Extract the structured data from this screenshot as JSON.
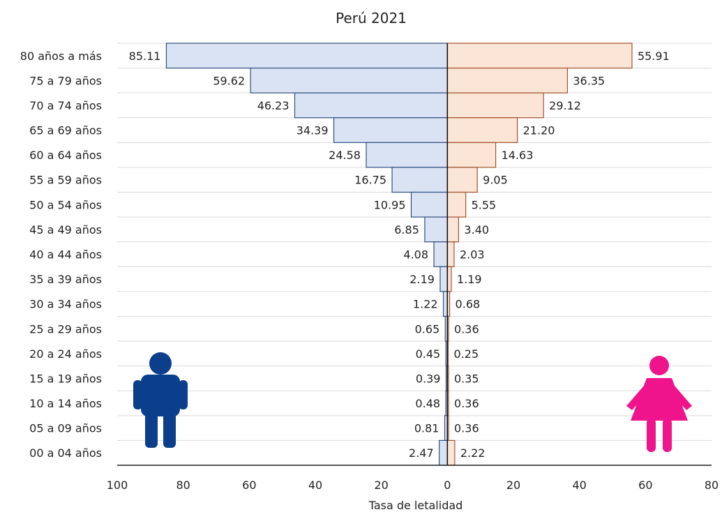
{
  "chart_data": {
    "type": "bar",
    "orientation": "horizontal",
    "layout": "population-pyramid",
    "title": "Perú 2021",
    "xlabel": "Tasa de letalidad",
    "ylabel": "",
    "categories": [
      "80 años a más",
      "75 a 79 años",
      "70 a 74 años",
      "65 a 69 años",
      "60 a 64 años",
      "55 a 59 años",
      "50 a 54 años",
      "45 a 49 años",
      "40 a 44 años",
      "35 a 39 años",
      "30 a 34 años",
      "25 a 29 años",
      "20 a 24 años",
      "15 a 19 años",
      "10 a 14 años",
      "05 a 09 años",
      "00 a 04 años"
    ],
    "series": [
      {
        "side": "left",
        "color": "#dae3f3",
        "edge": "#2f4f82",
        "values": [
          85.11,
          59.62,
          46.23,
          34.39,
          24.58,
          16.75,
          10.95,
          6.85,
          4.08,
          2.19,
          1.22,
          0.65,
          0.45,
          0.39,
          0.48,
          0.81,
          2.47
        ],
        "labels": [
          "85.11",
          "59.62",
          "46.23",
          "34.39",
          "24.58",
          "16.75",
          "10.95",
          "6.85",
          "4.08",
          "2.19",
          "1.22",
          "0.65",
          "0.45",
          "0.39",
          "0.48",
          "0.81",
          "2.47"
        ]
      },
      {
        "side": "right",
        "color": "#fbe5d6",
        "edge": "#a0522d",
        "values": [
          55.91,
          36.35,
          29.12,
          21.2,
          14.63,
          9.05,
          5.55,
          3.4,
          2.03,
          1.19,
          0.68,
          0.36,
          0.25,
          0.35,
          0.36,
          0.36,
          2.22
        ],
        "labels": [
          "55.91",
          "36.35",
          "29.12",
          "21.20",
          "14.63",
          "9.05",
          "5.55",
          "3.40",
          "2.03",
          "1.19",
          "0.68",
          "0.36",
          "0.25",
          "0.35",
          "0.36",
          "0.36",
          "2.22"
        ]
      }
    ],
    "xlim": [
      -100,
      80
    ],
    "xticks": [
      "100",
      "80",
      "60",
      "40",
      "20",
      "0",
      "20",
      "40",
      "60",
      "80"
    ],
    "grid": "horizontal",
    "male_icon_color": "#0b3f8c",
    "female_icon_color": "#f0148c"
  },
  "icons": {
    "male": "male-figure-icon",
    "female": "female-figure-icon"
  }
}
